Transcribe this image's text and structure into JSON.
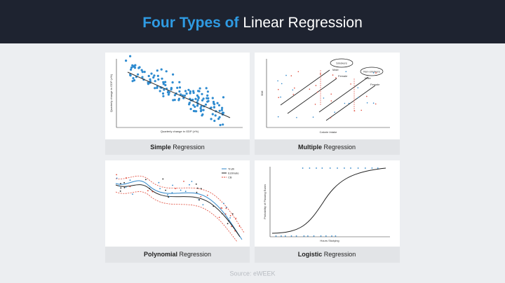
{
  "header": {
    "title_highlight": "Four Types of",
    "title_rest": "Linear Regression"
  },
  "panels": [
    {
      "caption_bold": "Simple",
      "caption_rest": "Regression",
      "x_label": "Quarterly change in GDP (±%)",
      "y_label": "Quarterly change in GDP (±%)"
    },
    {
      "caption_bold": "Multiple",
      "caption_rest": "Regression",
      "x_label": "Calorie Intake",
      "y_label": "BMI",
      "groups": [
        "Smokers",
        "Non-smokers"
      ],
      "subgroups": [
        "Male",
        "Female"
      ]
    },
    {
      "caption_bold": "Polynomial",
      "caption_rest": "Regression",
      "legend": [
        "Truth",
        "Estimate",
        "CB"
      ]
    },
    {
      "caption_bold": "Logistic",
      "caption_rest": "Regression",
      "x_label": "Hours Studying",
      "y_label": "Probability of Passing Exam"
    }
  ],
  "source": "Source: eWEEK"
}
